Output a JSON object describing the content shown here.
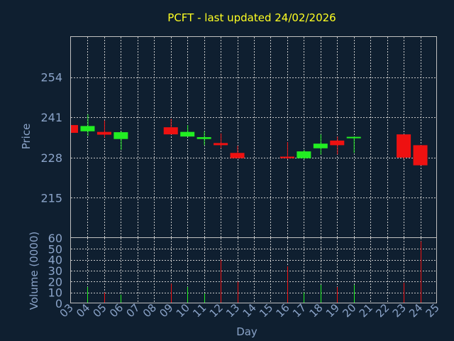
{
  "title": "PCFT - last updated 24/02/2026",
  "colors": {
    "background": "#0f1f30",
    "title": "#ffff22",
    "text": "#8aa3c8",
    "up": "#22ee22",
    "down": "#ee1111",
    "grid": "#c8c8c8"
  },
  "chart_data": [
    {
      "type": "candlestick",
      "ylabel": "Price",
      "ylim": [
        202,
        267
      ],
      "yticks": [
        215,
        228,
        241,
        254
      ],
      "xlim": [
        3,
        25
      ],
      "grid": true,
      "candles": [
        {
          "day": 3.0,
          "open": 238.5,
          "high": 238.5,
          "low": 236.0,
          "close": 236.0
        },
        {
          "day": 4.0,
          "open": 236.5,
          "high": 242.0,
          "low": 235.0,
          "close": 238.2
        },
        {
          "day": 5.0,
          "open": 236.3,
          "high": 240.0,
          "low": 234.5,
          "close": 235.4
        },
        {
          "day": 6.0,
          "open": 234.0,
          "high": 236.5,
          "low": 230.5,
          "close": 236.2
        },
        {
          "day": 9.0,
          "open": 237.8,
          "high": 240.5,
          "low": 235.5,
          "close": 235.5
        },
        {
          "day": 10.0,
          "open": 234.8,
          "high": 238.5,
          "low": 234.8,
          "close": 236.3
        },
        {
          "day": 11.0,
          "open": 234.0,
          "high": 236.5,
          "low": 232.0,
          "close": 234.6
        },
        {
          "day": 12.0,
          "open": 232.7,
          "high": 235.8,
          "low": 231.0,
          "close": 232.0
        },
        {
          "day": 13.0,
          "open": 229.5,
          "high": 231.8,
          "low": 227.8,
          "close": 227.8
        },
        {
          "day": 16.0,
          "open": 228.3,
          "high": 233.0,
          "low": 227.5,
          "close": 227.8
        },
        {
          "day": 17.0,
          "open": 227.8,
          "high": 230.5,
          "low": 227.5,
          "close": 230.0
        },
        {
          "day": 18.0,
          "open": 231.0,
          "high": 235.5,
          "low": 229.0,
          "close": 232.5
        },
        {
          "day": 19.0,
          "open": 233.5,
          "high": 234.8,
          "low": 229.0,
          "close": 232.0
        },
        {
          "day": 20.0,
          "open": 234.3,
          "high": 234.8,
          "low": 229.5,
          "close": 234.7
        },
        {
          "day": 23.0,
          "open": 235.5,
          "high": 235.5,
          "low": 227.5,
          "close": 228.0
        },
        {
          "day": 24.0,
          "open": 232.0,
          "high": 232.0,
          "low": 225.5,
          "close": 225.5
        }
      ]
    },
    {
      "type": "bar",
      "ylabel": "Volume (0000)",
      "xlabel": "Day",
      "ylim": [
        0,
        60
      ],
      "yticks": [
        0,
        10,
        20,
        30,
        40,
        50,
        60
      ],
      "xlim": [
        3,
        25
      ],
      "xticks": [
        "03",
        "04",
        "05",
        "06",
        "07",
        "08",
        "09",
        "10",
        "11",
        "12",
        "13",
        "14",
        "15",
        "16",
        "17",
        "18",
        "19",
        "20",
        "21",
        "22",
        "23",
        "24",
        "25"
      ],
      "grid": true,
      "bars": [
        {
          "day": 4.0,
          "value": 15,
          "direction": "up"
        },
        {
          "day": 5.0,
          "value": 10,
          "direction": "down"
        },
        {
          "day": 6.0,
          "value": 8,
          "direction": "up"
        },
        {
          "day": 9.0,
          "value": 18,
          "direction": "down"
        },
        {
          "day": 10.0,
          "value": 15,
          "direction": "up"
        },
        {
          "day": 11.0,
          "value": 9,
          "direction": "up"
        },
        {
          "day": 12.0,
          "value": 40,
          "direction": "down"
        },
        {
          "day": 13.0,
          "value": 20,
          "direction": "down"
        },
        {
          "day": 16.0,
          "value": 34,
          "direction": "down"
        },
        {
          "day": 17.0,
          "value": 10,
          "direction": "up"
        },
        {
          "day": 18.0,
          "value": 17,
          "direction": "up"
        },
        {
          "day": 19.0,
          "value": 15,
          "direction": "down"
        },
        {
          "day": 20.0,
          "value": 17,
          "direction": "up"
        },
        {
          "day": 23.0,
          "value": 19,
          "direction": "down"
        },
        {
          "day": 24.0,
          "value": 57,
          "direction": "down"
        }
      ]
    }
  ]
}
